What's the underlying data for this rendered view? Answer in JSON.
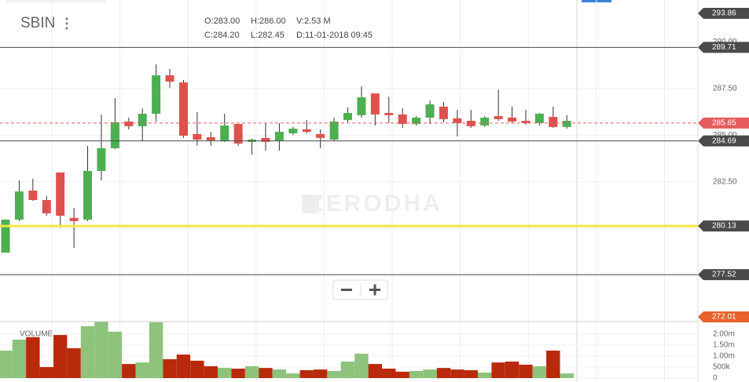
{
  "chart_data": {
    "type": "candlestick",
    "title": "SBIN",
    "ohlc_info": [
      "O:283.00",
      "H:286.00",
      "V:2.53 M",
      "C:284.20",
      "L:282.45",
      "D:11-01-2018 09:45"
    ],
    "watermark": "ZERODHA",
    "up_color": "#4caf50",
    "down_color": "#e0514d",
    "open": [
      278.7,
      280.47,
      282.03,
      281.52,
      283.0,
      280.56,
      280.47,
      283.08,
      284.3,
      285.73,
      285.48,
      286.15,
      288.21,
      287.83,
      285.06,
      284.89,
      284.68,
      285.6,
      284.64,
      284.85,
      284.68,
      285.1,
      285.31,
      285.06,
      284.76,
      285.81,
      286.07,
      287.24,
      286.19,
      286.11,
      285.6,
      285.94,
      286.53,
      285.9,
      285.77,
      285.52,
      286.02,
      285.94,
      285.77,
      285.65,
      285.98,
      285.44
    ],
    "high": [
      280.47,
      282.57,
      282.66,
      281.73,
      283.0,
      281.1,
      284.42,
      286.11,
      286.99,
      285.94,
      286.44,
      288.8,
      288.55,
      287.96,
      286.23,
      285.18,
      286.15,
      285.6,
      284.8,
      285.65,
      285.65,
      285.44,
      285.81,
      285.31,
      285.94,
      286.49,
      287.62,
      287.24,
      287.07,
      286.44,
      286.02,
      286.86,
      286.78,
      286.36,
      286.36,
      286.02,
      287.45,
      286.53,
      286.36,
      286.19,
      286.53,
      286.07
    ],
    "low": [
      278.7,
      280.39,
      281.48,
      280.68,
      280.05,
      278.96,
      280.39,
      282.57,
      284.26,
      285.31,
      284.68,
      285.73,
      287.54,
      284.85,
      284.43,
      284.43,
      284.64,
      284.43,
      283.96,
      284.17,
      284.17,
      285.01,
      285.1,
      284.3,
      284.68,
      285.69,
      285.94,
      285.52,
      285.65,
      285.39,
      285.52,
      285.6,
      285.69,
      284.93,
      285.39,
      285.44,
      285.77,
      285.65,
      285.56,
      285.52,
      285.39,
      285.35
    ],
    "close": [
      280.47,
      281.98,
      281.52,
      280.81,
      280.68,
      280.39,
      283.08,
      284.3,
      285.69,
      285.48,
      286.15,
      288.21,
      287.87,
      284.97,
      284.76,
      284.72,
      285.52,
      284.55,
      284.76,
      284.64,
      285.18,
      285.35,
      285.18,
      284.85,
      285.73,
      286.19,
      287.03,
      286.11,
      286.07,
      285.6,
      285.94,
      286.65,
      285.86,
      285.65,
      285.48,
      285.94,
      285.86,
      285.73,
      285.65,
      286.15,
      285.44,
      285.77
    ],
    "ylim": [
      275.0,
      292.25
    ],
    "yticks": [
      {
        "value": 277.5,
        "label": "277.50"
      },
      {
        "value": 280,
        "label": "280.00"
      },
      {
        "value": 282.5,
        "label": "282.50"
      },
      {
        "value": 285,
        "label": "285.00"
      },
      {
        "value": 287.5,
        "label": "287.50"
      },
      {
        "value": 290,
        "label": "290.00"
      }
    ],
    "grid": true,
    "price_lines": [
      {
        "value": 293.86,
        "color": "#4a4a4a"
      },
      {
        "value": 289.71,
        "color": "#4a4a4a"
      },
      {
        "value": 285.65,
        "color": "#e65c5c"
      },
      {
        "value": 284.69,
        "color": "#4a4a4a"
      },
      {
        "value": 280.13,
        "color": "#f5e642"
      },
      {
        "value": 277.52,
        "color": "#4a4a4a"
      },
      {
        "value": 272.01,
        "color": "#e8632b"
      }
    ],
    "volume": {
      "name": "VOLUME",
      "up_color": "#8dc37a",
      "down_color": "#b92a0c",
      "values": [
        1.25,
        1.75,
        1.86,
        0.5,
        1.96,
        1.36,
        2.36,
        2.57,
        2.11,
        0.64,
        0.71,
        2.54,
        0.86,
        1.07,
        0.79,
        0.54,
        0.46,
        0.43,
        0.54,
        0.46,
        0.39,
        0.21,
        0.36,
        0.39,
        0.32,
        0.75,
        1.11,
        0.64,
        0.43,
        0.29,
        0.32,
        0.39,
        0.46,
        0.39,
        0.36,
        0.25,
        0.71,
        0.75,
        0.61,
        0.54,
        1.25,
        0.21
      ],
      "ylim": [
        0,
        2.57
      ],
      "yticks": [
        0,
        {
          "value": 0.5,
          "label": "500k"
        },
        {
          "value": 1,
          "label": "1.00m"
        },
        {
          "value": 1.5,
          "label": "1.50m"
        },
        {
          "value": 2,
          "label": "2.00m"
        }
      ]
    }
  }
}
